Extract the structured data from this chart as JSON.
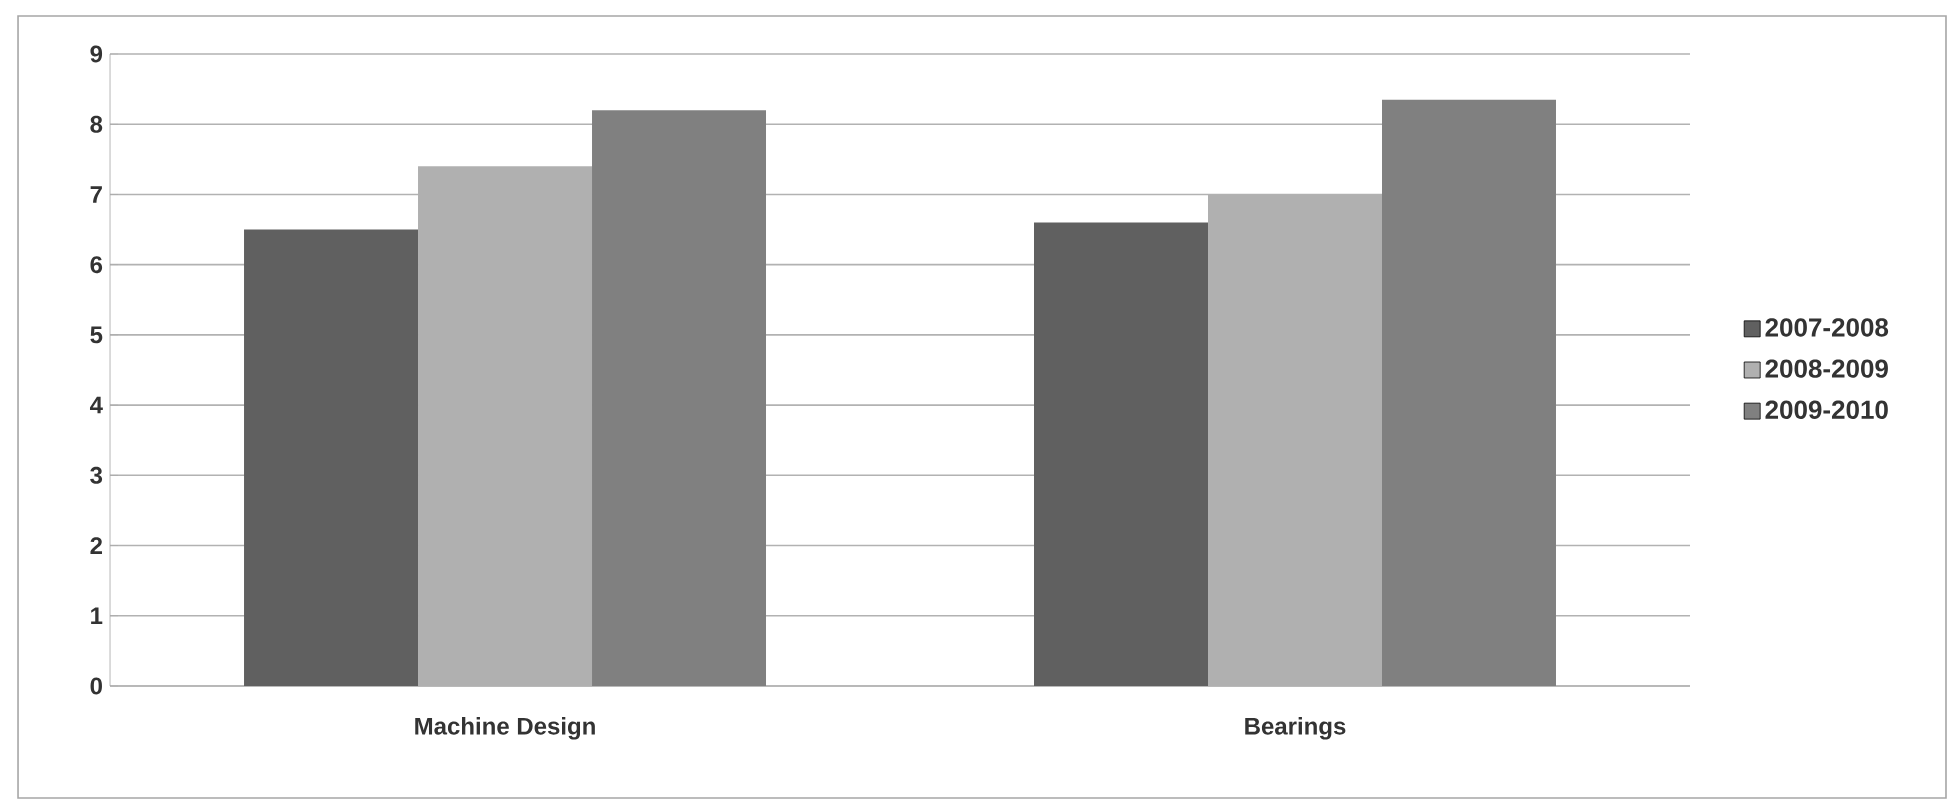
{
  "chart_data": {
    "type": "bar",
    "categories": [
      "Machine Design",
      "Bearings"
    ],
    "series": [
      {
        "name": "2007-2008",
        "color": "#606060",
        "values": [
          6.5,
          6.6
        ]
      },
      {
        "name": "2008-2009",
        "color": "#b0b0b0",
        "values": [
          7.4,
          7.0
        ]
      },
      {
        "name": "2009-2010",
        "color": "#808080",
        "values": [
          8.2,
          8.35
        ]
      }
    ],
    "ylim": [
      0,
      9
    ],
    "yticks": [
      0,
      1,
      2,
      3,
      4,
      5,
      6,
      7,
      8,
      9
    ],
    "grid": "y",
    "legend": "right"
  }
}
